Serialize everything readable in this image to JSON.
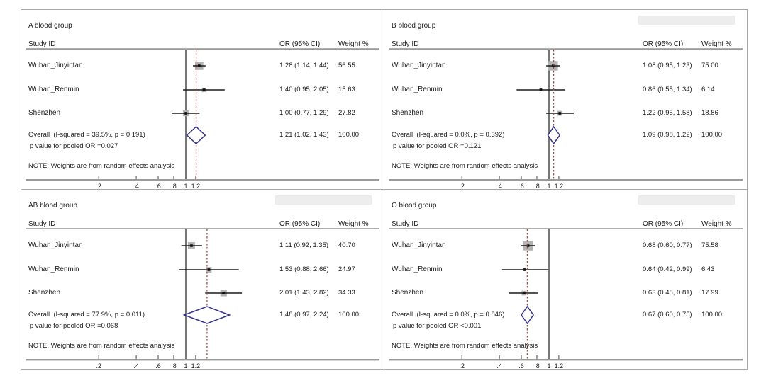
{
  "shared": {
    "study_col": "Study ID",
    "or_col": "OR (95% CI)",
    "weight_col": "Weight %",
    "note": "NOTE: Weights are from random effects analysis"
  },
  "colors": {
    "diamond_stroke": "#32328c",
    "pooled_line": "#9c4f4a",
    "null_line": "#3c3c3c",
    "ci_line": "#1a1a1a",
    "weight_box": "#b3b3b3",
    "rule": "#9b9b9b",
    "tick": "#444444",
    "border": "#a9a9a9",
    "text": "#1c1c1c",
    "smudge": "#ededed"
  },
  "chart_data": [
    {
      "type": "forest",
      "title": "A blood group",
      "x_scale": "log",
      "null_line": 1,
      "x_ticks": [
        0.2,
        0.4,
        0.6,
        0.8,
        1,
        1.2
      ],
      "x_tick_labels": [
        ".2",
        ".4",
        ".6",
        ".8",
        "1",
        "1.2"
      ],
      "studies": [
        {
          "label": "Wuhan_Jinyintan",
          "or": 1.28,
          "ci_low": 1.14,
          "ci_high": 1.44,
          "or_text": "1.28 (1.14, 1.44)",
          "weight": 56.55,
          "weight_text": "56.55"
        },
        {
          "label": "Wuhan_Renmin",
          "or": 1.4,
          "ci_low": 0.95,
          "ci_high": 2.05,
          "or_text": "1.40 (0.95, 2.05)",
          "weight": 15.63,
          "weight_text": "15.63"
        },
        {
          "label": "Shenzhen",
          "or": 1.0,
          "ci_low": 0.77,
          "ci_high": 1.29,
          "or_text": "1.00 (0.77, 1.29)",
          "weight": 27.82,
          "weight_text": "27.82"
        }
      ],
      "overall": {
        "label": "Overall  (I-squared = 39.5%, p = 0.191)",
        "or": 1.21,
        "ci_low": 1.02,
        "ci_high": 1.43,
        "or_text": "1.21 (1.02, 1.43)",
        "weight_text": "100.00"
      },
      "pooled_p": "p value for pooled OR =0.027",
      "smudge": false
    },
    {
      "type": "forest",
      "title": "B blood group",
      "x_scale": "log",
      "null_line": 1,
      "x_ticks": [
        0.2,
        0.4,
        0.6,
        0.8,
        1,
        1.2
      ],
      "x_tick_labels": [
        ".2",
        ".4",
        ".6",
        ".8",
        "1",
        "1.2"
      ],
      "studies": [
        {
          "label": "Wuhan_Jinyintan",
          "or": 1.08,
          "ci_low": 0.95,
          "ci_high": 1.23,
          "or_text": "1.08 (0.95, 1.23)",
          "weight": 75.0,
          "weight_text": "75.00"
        },
        {
          "label": "Wuhan_Renmin",
          "or": 0.86,
          "ci_low": 0.55,
          "ci_high": 1.34,
          "or_text": "0.86 (0.55, 1.34)",
          "weight": 6.14,
          "weight_text": "6.14"
        },
        {
          "label": "Shenzhen",
          "or": 1.22,
          "ci_low": 0.95,
          "ci_high": 1.58,
          "or_text": "1.22 (0.95, 1.58)",
          "weight": 18.86,
          "weight_text": "18.86"
        }
      ],
      "overall": {
        "label": "Overall  (I-squared = 0.0%, p = 0.392)",
        "or": 1.09,
        "ci_low": 0.98,
        "ci_high": 1.22,
        "or_text": "1.09 (0.98, 1.22)",
        "weight_text": "100.00"
      },
      "pooled_p": "p value for pooled OR =0.121",
      "smudge": true
    },
    {
      "type": "forest",
      "title": "AB blood group",
      "x_scale": "log",
      "null_line": 1,
      "x_ticks": [
        0.2,
        0.4,
        0.6,
        0.8,
        1,
        1.2
      ],
      "x_tick_labels": [
        ".2",
        ".4",
        ".6",
        ".8",
        "1",
        "1.2"
      ],
      "studies": [
        {
          "label": "Wuhan_Jinyintan",
          "or": 1.11,
          "ci_low": 0.92,
          "ci_high": 1.35,
          "or_text": "1.11 (0.92, 1.35)",
          "weight": 40.7,
          "weight_text": "40.70"
        },
        {
          "label": "Wuhan_Renmin",
          "or": 1.53,
          "ci_low": 0.88,
          "ci_high": 2.66,
          "or_text": "1.53 (0.88, 2.66)",
          "weight": 24.97,
          "weight_text": "24.97"
        },
        {
          "label": "Shenzhen",
          "or": 2.01,
          "ci_low": 1.43,
          "ci_high": 2.82,
          "or_text": "2.01 (1.43, 2.82)",
          "weight": 34.33,
          "weight_text": "34.33"
        }
      ],
      "overall": {
        "label": "Overall  (I-squared = 77.9%, p = 0.011)",
        "or": 1.48,
        "ci_low": 0.97,
        "ci_high": 2.24,
        "or_text": "1.48 (0.97, 2.24)",
        "weight_text": "100.00"
      },
      "pooled_p": "p value for pooled OR =0.068",
      "smudge": true
    },
    {
      "type": "forest",
      "title": "O blood group",
      "x_scale": "log",
      "null_line": 1,
      "x_ticks": [
        0.2,
        0.4,
        0.6,
        0.8,
        1,
        1.2
      ],
      "x_tick_labels": [
        ".2",
        ".4",
        ".6",
        ".8",
        "1",
        "1.2"
      ],
      "studies": [
        {
          "label": "Wuhan_Jinyintan",
          "or": 0.68,
          "ci_low": 0.6,
          "ci_high": 0.77,
          "or_text": "0.68 (0.60, 0.77)",
          "weight": 75.58,
          "weight_text": "75.58"
        },
        {
          "label": "Wuhan_Renmin",
          "or": 0.64,
          "ci_low": 0.42,
          "ci_high": 0.99,
          "or_text": "0.64 (0.42, 0.99)",
          "weight": 6.43,
          "weight_text": "6.43"
        },
        {
          "label": "Shenzhen",
          "or": 0.63,
          "ci_low": 0.48,
          "ci_high": 0.81,
          "or_text": "0.63 (0.48, 0.81)",
          "weight": 17.99,
          "weight_text": "17.99"
        }
      ],
      "overall": {
        "label": "Overall  (I-squared = 0.0%, p = 0.846)",
        "or": 0.67,
        "ci_low": 0.6,
        "ci_high": 0.75,
        "or_text": "0.67 (0.60, 0.75)",
        "weight_text": "100.00"
      },
      "pooled_p": "p value for pooled OR <0.001",
      "smudge": true
    }
  ]
}
